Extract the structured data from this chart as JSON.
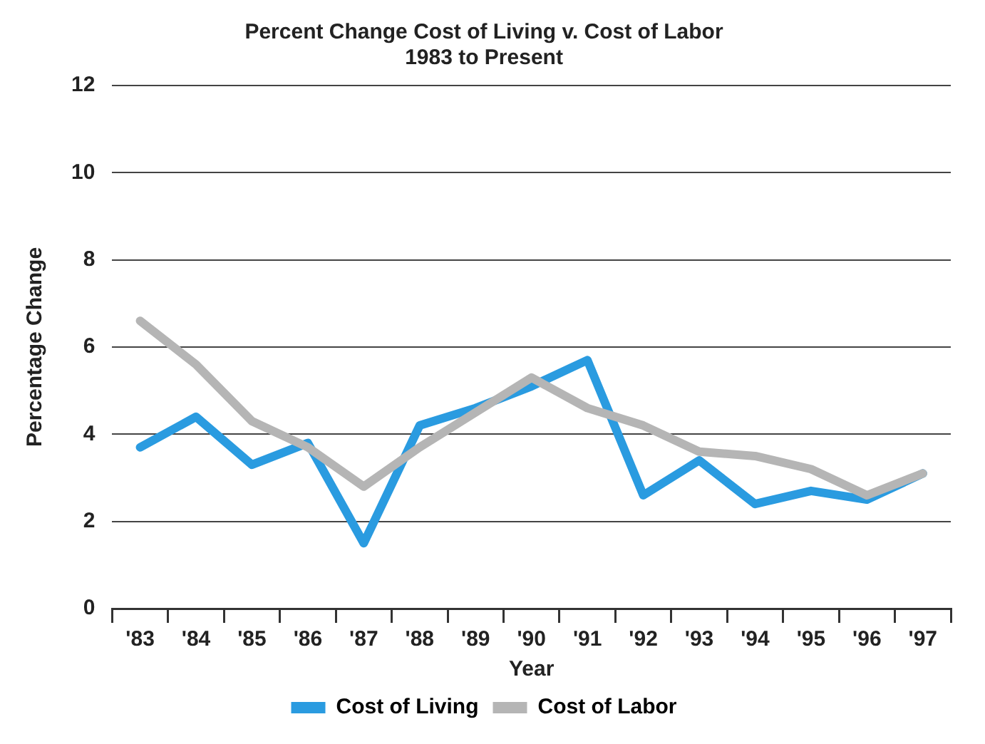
{
  "chart_data": {
    "type": "line",
    "title": "Percent Change Cost of Living v. Cost of Labor",
    "subtitle": "1983 to Present",
    "xlabel": "Year",
    "ylabel": "Percentage Change",
    "categories": [
      "'83",
      "'84",
      "'85",
      "'86",
      "'87",
      "'88",
      "'89",
      "'90",
      "'91",
      "'92",
      "'93",
      "'94",
      "'95",
      "'96",
      "'97"
    ],
    "series": [
      {
        "name": "Cost of Labor",
        "color": "#b5b5b5",
        "values": [
          6.6,
          5.6,
          4.3,
          3.7,
          2.8,
          3.7,
          4.5,
          5.3,
          4.6,
          4.2,
          3.6,
          3.5,
          3.2,
          2.6,
          3.1
        ]
      },
      {
        "name": "Cost of Living",
        "color": "#2a9be0",
        "values": [
          3.7,
          4.4,
          3.3,
          3.8,
          1.5,
          4.2,
          4.6,
          5.1,
          5.7,
          2.6,
          3.4,
          2.4,
          2.7,
          2.5,
          3.1
        ]
      }
    ],
    "ylim": [
      0,
      12
    ],
    "yticks": [
      0,
      2,
      4,
      6,
      8,
      10,
      12
    ],
    "grid": "y",
    "legend": "bottom",
    "marker": "none",
    "line_style": "solid"
  }
}
